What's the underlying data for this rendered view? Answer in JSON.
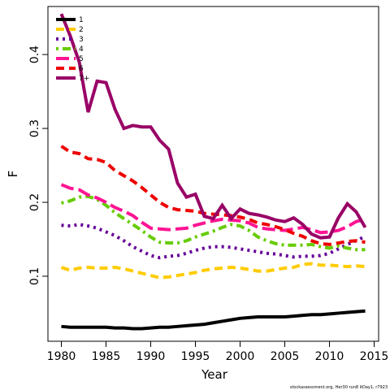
{
  "chart_data": {
    "type": "line",
    "x_label": "Year",
    "y_label": "F",
    "footnote": "stockassessment.org, Her30 run8 itDay1, r7923",
    "x": [
      1980,
      1981,
      1982,
      1983,
      1984,
      1985,
      1986,
      1987,
      1988,
      1989,
      1990,
      1991,
      1992,
      1993,
      1994,
      1995,
      1996,
      1997,
      1998,
      1999,
      2000,
      2001,
      2002,
      2003,
      2004,
      2005,
      2006,
      2007,
      2008,
      2009,
      2010,
      2011,
      2012,
      2013,
      2014
    ],
    "xlim": [
      1978.5,
      2015.5
    ],
    "xticks": [
      1980,
      1985,
      1990,
      1995,
      2000,
      2005,
      2010,
      2015
    ],
    "ylim": [
      0.012,
      0.465
    ],
    "yticks": [
      0.1,
      0.2,
      0.3,
      0.4
    ],
    "legend": "top-left",
    "series": [
      {
        "name": "1",
        "color": "#000000",
        "linestyle": "solid",
        "values": [
          0.032,
          0.031,
          0.031,
          0.031,
          0.031,
          0.031,
          0.03,
          0.03,
          0.029,
          0.029,
          0.03,
          0.031,
          0.031,
          0.032,
          0.033,
          0.034,
          0.035,
          0.037,
          0.039,
          0.041,
          0.043,
          0.044,
          0.045,
          0.045,
          0.045,
          0.045,
          0.046,
          0.047,
          0.048,
          0.048,
          0.049,
          0.05,
          0.051,
          0.052,
          0.053
        ]
      },
      {
        "name": "2",
        "color": "#ffcc00",
        "linestyle": "dashed",
        "values": [
          0.112,
          0.108,
          0.111,
          0.112,
          0.111,
          0.111,
          0.112,
          0.11,
          0.107,
          0.104,
          0.101,
          0.098,
          0.099,
          0.101,
          0.103,
          0.105,
          0.108,
          0.11,
          0.111,
          0.112,
          0.111,
          0.109,
          0.107,
          0.107,
          0.109,
          0.111,
          0.112,
          0.116,
          0.117,
          0.115,
          0.115,
          0.114,
          0.113,
          0.114,
          0.113
        ]
      },
      {
        "name": "3",
        "color": "#660099",
        "linestyle": "dotted",
        "values": [
          0.169,
          0.168,
          0.17,
          0.168,
          0.165,
          0.16,
          0.155,
          0.148,
          0.14,
          0.134,
          0.128,
          0.125,
          0.127,
          0.128,
          0.131,
          0.135,
          0.138,
          0.14,
          0.14,
          0.139,
          0.137,
          0.135,
          0.133,
          0.131,
          0.13,
          0.128,
          0.126,
          0.127,
          0.127,
          0.128,
          0.131,
          0.137,
          0.143,
          0.148,
          0.154
        ]
      },
      {
        "name": "4",
        "color": "#66cc00",
        "linestyle": "dotdash",
        "values": [
          0.199,
          0.202,
          0.207,
          0.208,
          0.204,
          0.196,
          0.186,
          0.178,
          0.17,
          0.162,
          0.153,
          0.146,
          0.145,
          0.145,
          0.148,
          0.153,
          0.157,
          0.161,
          0.166,
          0.17,
          0.168,
          0.162,
          0.153,
          0.148,
          0.144,
          0.142,
          0.142,
          0.142,
          0.143,
          0.14,
          0.138,
          0.141,
          0.138,
          0.136,
          0.136
        ]
      },
      {
        "name": "5",
        "color": "#ff1493",
        "linestyle": "longdash",
        "values": [
          0.224,
          0.219,
          0.217,
          0.21,
          0.206,
          0.2,
          0.193,
          0.188,
          0.182,
          0.173,
          0.165,
          0.164,
          0.163,
          0.164,
          0.165,
          0.169,
          0.172,
          0.175,
          0.177,
          0.176,
          0.175,
          0.172,
          0.166,
          0.164,
          0.163,
          0.162,
          0.164,
          0.166,
          0.163,
          0.159,
          0.16,
          0.162,
          0.167,
          0.174,
          0.177
        ]
      },
      {
        "name": "6",
        "color": "#ee0000",
        "linestyle": "dashed",
        "values": [
          0.276,
          0.268,
          0.266,
          0.259,
          0.258,
          0.254,
          0.243,
          0.236,
          0.229,
          0.22,
          0.21,
          0.2,
          0.193,
          0.19,
          0.189,
          0.188,
          0.185,
          0.184,
          0.183,
          0.182,
          0.18,
          0.177,
          0.172,
          0.17,
          0.167,
          0.163,
          0.158,
          0.154,
          0.148,
          0.144,
          0.143,
          0.145,
          0.147,
          0.148,
          0.146
        ]
      },
      {
        "name": "7+",
        "color": "#990066",
        "linestyle": "solid",
        "values": [
          0.455,
          0.425,
          0.39,
          0.322,
          0.364,
          0.362,
          0.326,
          0.3,
          0.304,
          0.302,
          0.302,
          0.284,
          0.272,
          0.226,
          0.207,
          0.211,
          0.181,
          0.178,
          0.196,
          0.178,
          0.191,
          0.185,
          0.183,
          0.18,
          0.176,
          0.174,
          0.179,
          0.17,
          0.157,
          0.152,
          0.153,
          0.179,
          0.198,
          0.187,
          0.166
        ]
      }
    ]
  }
}
